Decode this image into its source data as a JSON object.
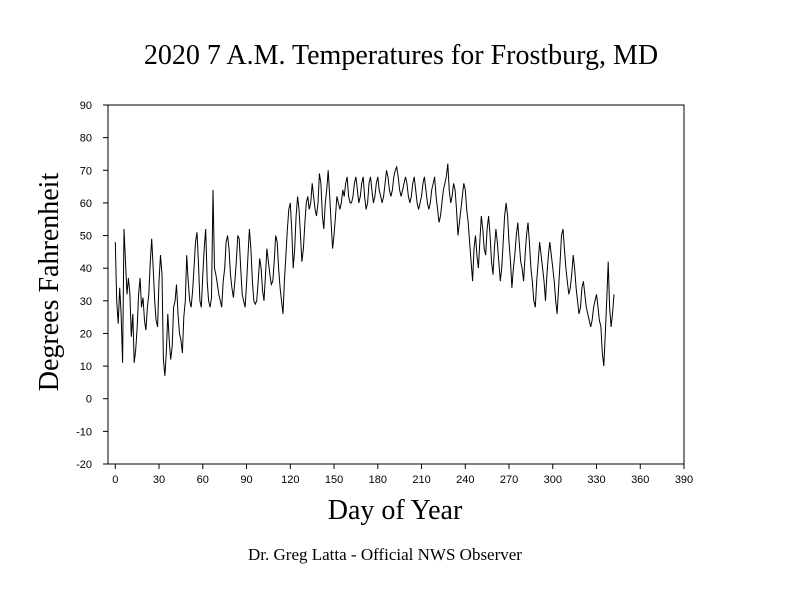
{
  "chart_data": {
    "type": "line",
    "title": "2020 7 A.M. Temperatures for Frostburg, MD",
    "xlabel": "Day of Year",
    "ylabel": "Degrees Fahrenheit",
    "credit": "Dr. Greg Latta - Official NWS Observer",
    "xlim": [
      -5,
      390
    ],
    "ylim": [
      -20,
      90
    ],
    "x_ticks": [
      0,
      30,
      60,
      90,
      120,
      150,
      180,
      210,
      240,
      270,
      300,
      330,
      360,
      390
    ],
    "y_ticks": [
      90,
      80,
      70,
      60,
      50,
      40,
      30,
      20,
      10,
      0,
      -10,
      -20
    ],
    "grid": false,
    "line_color": "#000000",
    "series": [
      {
        "x_start": 0,
        "x_step": 1,
        "values": [
          48,
          30,
          23,
          34,
          26,
          11,
          52,
          42,
          32,
          37,
          32,
          19,
          26,
          11,
          15,
          22,
          32,
          37,
          28,
          31,
          24,
          21,
          28,
          32,
          42,
          49,
          40,
          30,
          24,
          22,
          36,
          44,
          38,
          12,
          7,
          14,
          26,
          18,
          12,
          16,
          28,
          30,
          35,
          26,
          20,
          18,
          14,
          25,
          30,
          44,
          36,
          30,
          28,
          33,
          40,
          48,
          51,
          42,
          30,
          28,
          38,
          46,
          52,
          36,
          30,
          28,
          31,
          64,
          40,
          38,
          35,
          32,
          30,
          28,
          36,
          40,
          48,
          50,
          46,
          38,
          34,
          31,
          36,
          42,
          50,
          49,
          40,
          32,
          30,
          28,
          35,
          44,
          52,
          46,
          36,
          30,
          29,
          30,
          36,
          43,
          40,
          33,
          30,
          38,
          46,
          42,
          38,
          35,
          36,
          42,
          50,
          48,
          40,
          34,
          30,
          26,
          36,
          44,
          52,
          58,
          60,
          52,
          40,
          46,
          56,
          62,
          58,
          50,
          42,
          46,
          54,
          60,
          62,
          58,
          60,
          66,
          62,
          58,
          56,
          60,
          69,
          66,
          56,
          52,
          60,
          64,
          70,
          62,
          54,
          46,
          50,
          56,
          62,
          60,
          58,
          60,
          64,
          62,
          66,
          68,
          62,
          60,
          60,
          62,
          66,
          68,
          64,
          60,
          62,
          66,
          68,
          62,
          58,
          60,
          66,
          68,
          64,
          60,
          62,
          66,
          68,
          64,
          62,
          60,
          62,
          66,
          70,
          68,
          64,
          62,
          64,
          68,
          70,
          71,
          68,
          64,
          62,
          64,
          66,
          68,
          66,
          62,
          60,
          62,
          66,
          68,
          64,
          60,
          58,
          60,
          62,
          66,
          68,
          64,
          60,
          58,
          60,
          64,
          66,
          68,
          62,
          58,
          54,
          56,
          60,
          64,
          66,
          68,
          72,
          64,
          60,
          62,
          66,
          64,
          58,
          50,
          54,
          58,
          62,
          66,
          64,
          58,
          54,
          48,
          42,
          36,
          46,
          50,
          44,
          40,
          48,
          56,
          52,
          46,
          44,
          52,
          56,
          50,
          42,
          38,
          46,
          52,
          48,
          42,
          36,
          40,
          48,
          56,
          60,
          56,
          48,
          42,
          34,
          40,
          44,
          50,
          54,
          48,
          42,
          40,
          36,
          44,
          50,
          54,
          48,
          40,
          36,
          30,
          28,
          36,
          42,
          48,
          44,
          40,
          36,
          30,
          38,
          44,
          48,
          44,
          40,
          36,
          30,
          26,
          34,
          42,
          50,
          52,
          46,
          40,
          36,
          32,
          34,
          38,
          44,
          40,
          34,
          30,
          26,
          28,
          34,
          36,
          32,
          28,
          26,
          24,
          22,
          24,
          28,
          30,
          32,
          28,
          24,
          22,
          14,
          10,
          20,
          30,
          42,
          28,
          22,
          26,
          32
        ]
      }
    ]
  }
}
